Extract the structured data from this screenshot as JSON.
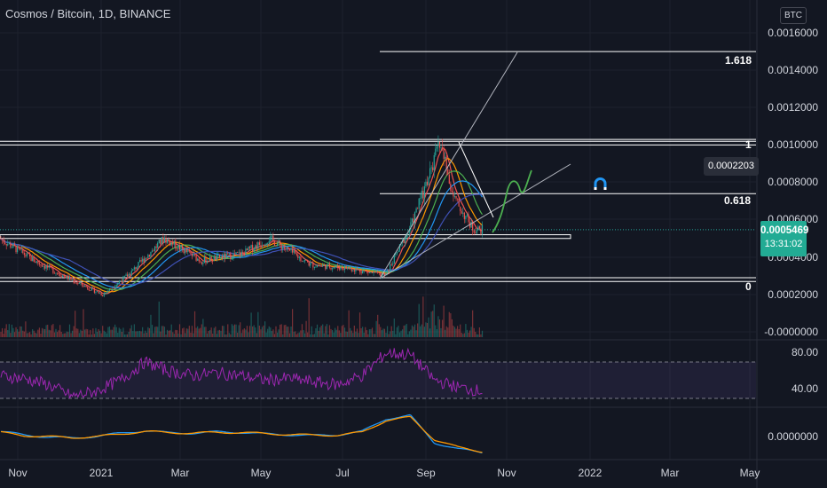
{
  "header": {
    "symbol_title": "Cosmos / Bitcoin, 1D, BINANCE",
    "currency_badge": "BTC"
  },
  "price_axis": {
    "labels": [
      "0.0016000",
      "0.0014000",
      "0.0012000",
      "0.0010000",
      "0.0008000",
      "0.0006000",
      "0.0004000",
      "0.0002000",
      "-0.0000000"
    ]
  },
  "rsi_axis": {
    "labels": [
      "80.00",
      "40.00"
    ]
  },
  "osc_axis": {
    "labels": [
      "0.0000000"
    ]
  },
  "time_axis": {
    "labels": [
      "Nov",
      "2021",
      "Mar",
      "May",
      "Jul",
      "Sep",
      "Nov",
      "2022",
      "Mar",
      "May"
    ]
  },
  "fib_levels": {
    "labels": [
      "1.618",
      "1",
      "0.618",
      "0"
    ]
  },
  "measure_label": "0.0002203",
  "last_price": {
    "value": "0.0005469",
    "countdown": "13:31:02"
  },
  "colors": {
    "background": "#131722",
    "candle_up": "#26a69a",
    "candle_down": "#ef5350",
    "rsi_line": "#9c27b0",
    "osc_fast": "#2196f3",
    "osc_slow": "#ff9800",
    "projection": "#4caf50",
    "accent_badge": "#22ab94"
  },
  "icons": {
    "magnet": "magnet-icon"
  },
  "chart_data": {
    "type": "candlestick",
    "title": "Cosmos / Bitcoin, 1D, BINANCE",
    "x_range": [
      "2020-10-20",
      "2022-05-10"
    ],
    "y_range": [
      0.0,
      0.0017
    ],
    "ohlc_trend": [
      {
        "date": "2020-10-20",
        "close": 0.0005
      },
      {
        "date": "2020-11-15",
        "close": 0.00038
      },
      {
        "date": "2020-12-15",
        "close": 0.00027
      },
      {
        "date": "2021-01-05",
        "close": 0.0002
      },
      {
        "date": "2021-01-25",
        "close": 0.00031
      },
      {
        "date": "2021-02-20",
        "close": 0.0005
      },
      {
        "date": "2021-03-20",
        "close": 0.00038
      },
      {
        "date": "2021-04-20",
        "close": 0.00042
      },
      {
        "date": "2021-05-10",
        "close": 0.0005
      },
      {
        "date": "2021-06-10",
        "close": 0.00036
      },
      {
        "date": "2021-07-10",
        "close": 0.00034
      },
      {
        "date": "2021-08-05",
        "close": 0.0003
      },
      {
        "date": "2021-08-25",
        "close": 0.00058
      },
      {
        "date": "2021-09-10",
        "close": 0.0009
      },
      {
        "date": "2021-09-15",
        "close": 0.00102
      },
      {
        "date": "2021-09-25",
        "close": 0.00072
      },
      {
        "date": "2021-10-10",
        "close": 0.00055
      },
      {
        "date": "2021-10-17",
        "close": 0.000547
      }
    ],
    "horizontal_levels": [
      0.00102,
      0.001,
      0.00052,
      0.0005,
      0.00029,
      0.00027
    ],
    "fibonacci": {
      "levels": [
        {
          "ratio": "1.618",
          "price": 0.0015
        },
        {
          "ratio": "1",
          "price": 0.00103
        },
        {
          "ratio": "0.618",
          "price": 0.00074
        },
        {
          "ratio": "0",
          "price": 0.00029
        }
      ]
    },
    "last_price": 0.0005469,
    "rsi": {
      "levels": [
        70,
        30
      ],
      "values": [
        55,
        52,
        45,
        32,
        38,
        50,
        70,
        60,
        55,
        58,
        55,
        50,
        52,
        48,
        45,
        55,
        80,
        78,
        50,
        42,
        38
      ]
    },
    "oscillator": {
      "series": [
        {
          "values": [
            0.2,
            0.0,
            -0.15,
            -0.2,
            -0.1,
            0.1,
            0.25,
            0.12,
            0.1,
            0.18,
            0.15,
            0.05,
            0.0,
            -0.05,
            0.0,
            0.2,
            1.0,
            1.2,
            -0.5,
            -0.9,
            -1.1
          ]
        },
        {
          "values": [
            0.15,
            -0.05,
            -0.12,
            -0.18,
            -0.12,
            0.05,
            0.2,
            0.14,
            0.1,
            0.15,
            0.14,
            0.07,
            0.02,
            -0.03,
            -0.02,
            0.15,
            0.9,
            1.1,
            -0.3,
            -0.8,
            -1.05
          ]
        }
      ]
    }
  }
}
